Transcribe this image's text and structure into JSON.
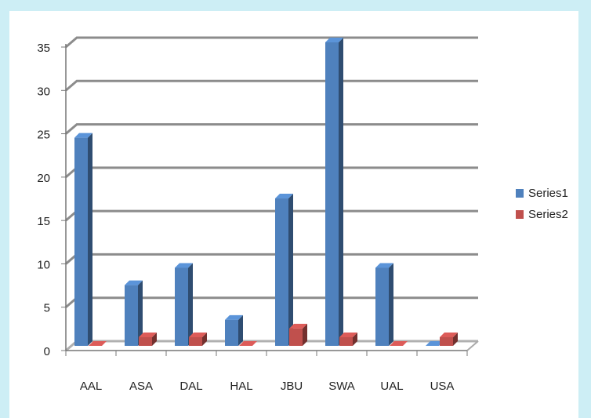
{
  "chart_data": {
    "type": "bar",
    "categories": [
      "AAL",
      "ASA",
      "DAL",
      "HAL",
      "JBU",
      "SWA",
      "UAL",
      "USA"
    ],
    "series": [
      {
        "name": "Series1",
        "color": "#4f81bd",
        "values": [
          24,
          7,
          9,
          3,
          17,
          35,
          9,
          0
        ]
      },
      {
        "name": "Series2",
        "color": "#c0504d",
        "values": [
          0,
          1,
          1,
          0,
          2,
          1,
          0,
          1
        ]
      }
    ],
    "ylim": [
      0,
      35
    ],
    "yticks": [
      0,
      5,
      10,
      15,
      20,
      25,
      30,
      35
    ],
    "grid": true,
    "legend": "right"
  }
}
